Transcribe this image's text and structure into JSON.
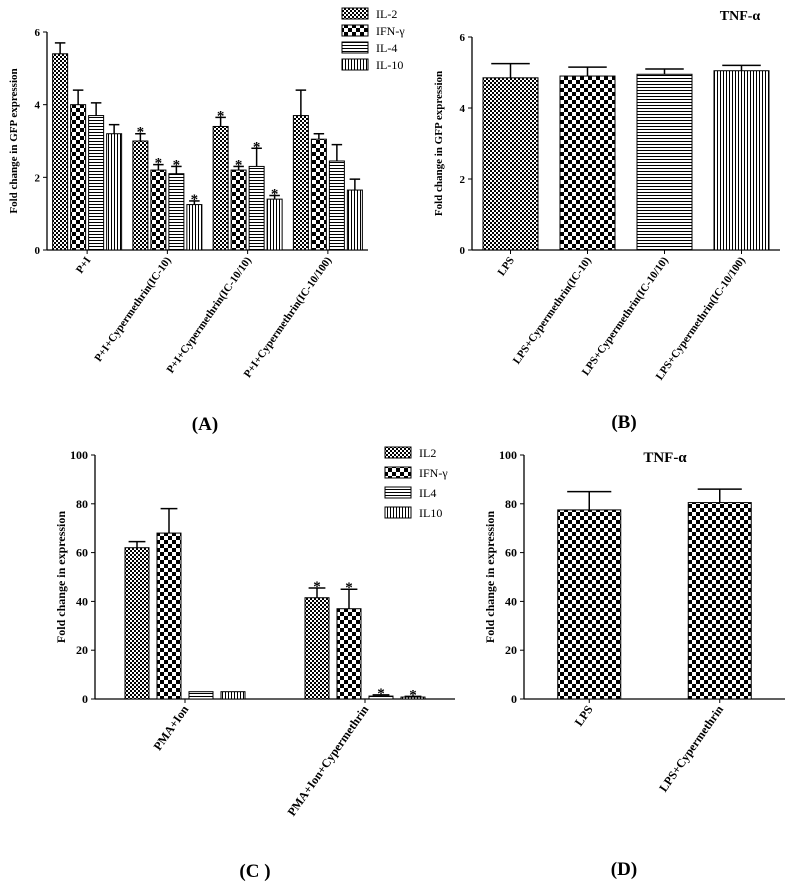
{
  "figure": {
    "panel_labels": [
      "(A)",
      "(B)",
      "(C )",
      "(D)"
    ]
  },
  "colors": {
    "ink": "#000000",
    "bar_fill_bg": "#ffffff"
  },
  "chart_data": [
    {
      "panel": "(A)",
      "type": "bar",
      "title": "",
      "xlabel": "",
      "ylabel": "Fold change in GFP expression",
      "ylim": [
        0,
        6
      ],
      "yticks": [
        0,
        2,
        4,
        6
      ],
      "grid": false,
      "legend_position": "top-right",
      "categories": [
        "P+I",
        "P+I+Cypermethrin(IC-10)",
        "P+I+Cypermethrin(IC-10/10)",
        "P+I+Cypermethrin(IC-10/100)"
      ],
      "series": [
        {
          "name": "IL-2",
          "pattern": "checker-dense",
          "values": [
            5.4,
            3.0,
            3.4,
            3.7
          ],
          "errors": [
            0.3,
            0.2,
            0.25,
            0.7
          ],
          "sig": [
            "",
            "*",
            "*",
            ""
          ]
        },
        {
          "name": "IFN-γ",
          "pattern": "checker",
          "values": [
            4.0,
            2.2,
            2.2,
            3.05
          ],
          "errors": [
            0.4,
            0.15,
            0.1,
            0.15
          ],
          "sig": [
            "",
            "*",
            "*",
            ""
          ]
        },
        {
          "name": "IL-4",
          "pattern": "hlines",
          "values": [
            3.7,
            2.1,
            2.3,
            2.45
          ],
          "errors": [
            0.35,
            0.2,
            0.5,
            0.45
          ],
          "sig": [
            "",
            "*",
            "*",
            ""
          ]
        },
        {
          "name": "IL-10",
          "pattern": "vlines",
          "values": [
            3.2,
            1.25,
            1.4,
            1.65
          ],
          "errors": [
            0.25,
            0.1,
            0.1,
            0.3
          ],
          "sig": [
            "",
            "*",
            "*",
            ""
          ]
        }
      ]
    },
    {
      "panel": "(B)",
      "type": "bar",
      "title": "TNF-α",
      "xlabel": "",
      "ylabel": "Fold change in GFP expression",
      "ylim": [
        0,
        6
      ],
      "yticks": [
        0,
        2,
        4,
        6
      ],
      "grid": false,
      "categories": [
        "LPS",
        "LPS+Cypermethrin(IC-10)",
        "LPS+Cypermethrin(IC-10/10)",
        "LPS+Cypermethrin(IC-10/100)"
      ],
      "series": [
        {
          "name": "",
          "patterns": [
            "checker-dense",
            "checker",
            "hlines",
            "vlines"
          ],
          "values": [
            4.85,
            4.9,
            4.95,
            5.05
          ],
          "errors": [
            0.4,
            0.25,
            0.15,
            0.15
          ],
          "sig": [
            "",
            "",
            "",
            ""
          ]
        }
      ]
    },
    {
      "panel": "(C )",
      "type": "bar",
      "title": "",
      "xlabel": "",
      "ylabel": "Fold change in expression",
      "ylim": [
        0,
        100
      ],
      "yticks": [
        0,
        20,
        40,
        60,
        80,
        100
      ],
      "grid": false,
      "legend_position": "top-right",
      "categories": [
        "PMA+Ion",
        "PMA+Ion+Cypermethrin"
      ],
      "series": [
        {
          "name": "IL2",
          "pattern": "checker-dense",
          "values": [
            62,
            41.5
          ],
          "errors": [
            2.5,
            4
          ],
          "sig": [
            "",
            "*"
          ]
        },
        {
          "name": "IFN-γ",
          "pattern": "checker",
          "values": [
            68,
            37
          ],
          "errors": [
            10,
            8
          ],
          "sig": [
            "",
            "*"
          ]
        },
        {
          "name": "IL4",
          "pattern": "hlines",
          "values": [
            3,
            1.2
          ],
          "errors": [
            0,
            0.5
          ],
          "sig": [
            "",
            "*"
          ]
        },
        {
          "name": "IL10",
          "pattern": "vlines",
          "values": [
            3,
            0.8
          ],
          "errors": [
            0,
            0.3
          ],
          "sig": [
            "",
            "*"
          ]
        }
      ]
    },
    {
      "panel": "(D)",
      "type": "bar",
      "title": "TNF-α",
      "xlabel": "",
      "ylabel": "Fold change in expression",
      "ylim": [
        0,
        100
      ],
      "yticks": [
        0,
        20,
        40,
        60,
        80,
        100
      ],
      "grid": false,
      "categories": [
        "LPS",
        "LPS+Cypermethrin"
      ],
      "series": [
        {
          "name": "",
          "patterns": [
            "checker",
            "checker"
          ],
          "values": [
            77.5,
            80.5
          ],
          "errors": [
            7.5,
            5.5
          ],
          "sig": [
            "",
            ""
          ]
        }
      ]
    }
  ]
}
